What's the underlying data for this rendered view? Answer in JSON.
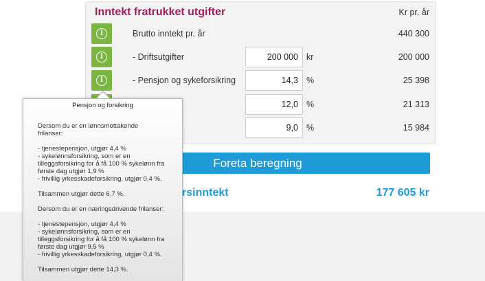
{
  "panel": {
    "title": "Inntekt fratrukket utgifter",
    "column_header": "Kr pr. år"
  },
  "rows": [
    {
      "label": "Brutto inntekt pr. år",
      "input": null,
      "unit": "",
      "value": "440 300"
    },
    {
      "label": "- Driftsutgifter",
      "input": "200 000",
      "unit": "kr",
      "value": "200 000"
    },
    {
      "label": "- Pensjon og sykeforsikring",
      "input": "14,3",
      "unit": "%",
      "value": "25 398"
    },
    {
      "label": "",
      "input": "12,0",
      "unit": "%",
      "value": "21 313"
    },
    {
      "label": "",
      "input": "9,0",
      "unit": "%",
      "value": "15 984"
    }
  ],
  "calculate_button": "Foreta beregning",
  "result": {
    "label": "rsinntekt",
    "value": "177 605 kr"
  },
  "tooltip": {
    "title": "Pensjon og forsikring",
    "lines": [
      "Dersom du er en lønnsmottakende",
      "frilanser:",
      "",
      "- tjenestepensjon, utgjør 4,4 %",
      "- sykelønnsforsikring, som er en",
      "tilleggsforsikring for å få 100 % sykelønn fra",
      "første dag utgjør 1,9 %",
      "- frivillig yrkesskadeforsikring, utgjør 0,4 %.",
      "",
      "Tilsammen utgjør dette 6,7 %.",
      "",
      "Dersom du er en næringsdrivende frilanser:",
      "",
      "- tjenestepensjon, utgjør 4,4 %",
      "- sykelønnsforsikring, som er en",
      "tilleggsforsikring for å få 100 % sykelønn fra",
      "første dag utgjør 9,5 %",
      "- frivillig yrkesskadeforsikring, utgjør 0,4 %.",
      "",
      "Tilsammen utgjør dette 14,3 %."
    ]
  },
  "colors": {
    "title": "#a01b5c",
    "accent": "#1f9bd7",
    "info_button": "#7bb642"
  },
  "icons": {
    "info": "info-circle-icon"
  }
}
